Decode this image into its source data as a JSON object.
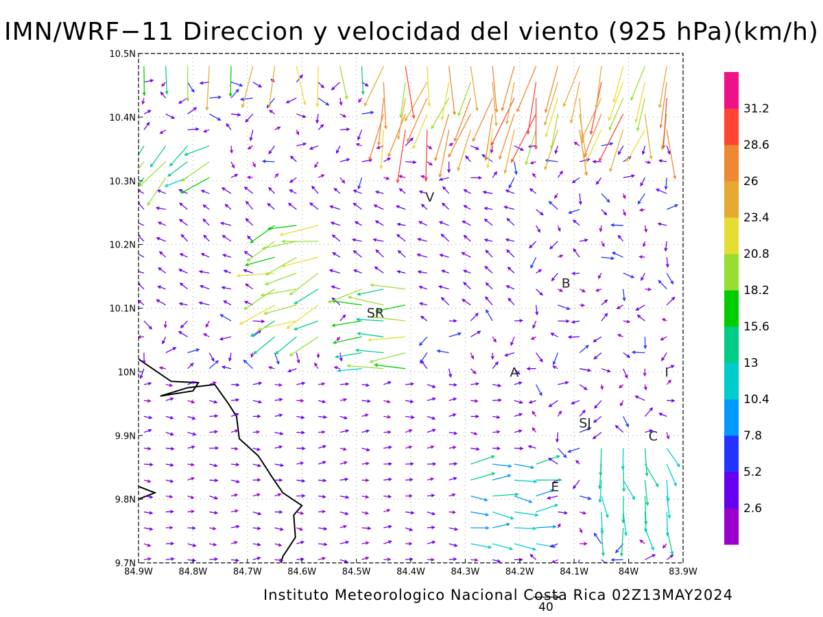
{
  "title": "IMN/WRF−11 Direccion y velocidad del viento (925 hPa)(km/h)",
  "footer": "Instituto Meteorologico Nacional Costa Rica 02Z13MAY2024",
  "reference_vector_label": "40",
  "chart_data": {
    "type": "vector_map",
    "xlim": [
      -84.9,
      -83.9
    ],
    "ylim": [
      9.7,
      10.5
    ],
    "grid": true,
    "x_ticks": [
      {
        "value": -84.9,
        "label": "84.9W"
      },
      {
        "value": -84.8,
        "label": "84.8W"
      },
      {
        "value": -84.7,
        "label": "84.7W"
      },
      {
        "value": -84.6,
        "label": "84.6W"
      },
      {
        "value": -84.5,
        "label": "84.5W"
      },
      {
        "value": -84.4,
        "label": "84.4W"
      },
      {
        "value": -84.3,
        "label": "84.3W"
      },
      {
        "value": -84.2,
        "label": "84.2W"
      },
      {
        "value": -84.1,
        "label": "84.1W"
      },
      {
        "value": -84.0,
        "label": "84W"
      },
      {
        "value": -83.9,
        "label": "83.9W"
      }
    ],
    "y_ticks": [
      {
        "value": 9.7,
        "label": "9.7N"
      },
      {
        "value": 9.8,
        "label": "9.8N"
      },
      {
        "value": 9.9,
        "label": "9.9N"
      },
      {
        "value": 10.0,
        "label": "10N"
      },
      {
        "value": 10.1,
        "label": "10.1N"
      },
      {
        "value": 10.2,
        "label": "10.2N"
      },
      {
        "value": 10.3,
        "label": "10.3N"
      },
      {
        "value": 10.4,
        "label": "10.4N"
      },
      {
        "value": 10.5,
        "label": "10.5N"
      }
    ],
    "colorbar": {
      "labels": [
        "2.6",
        "5.2",
        "7.8",
        "10.4",
        "13",
        "15.6",
        "18.2",
        "20.8",
        "23.4",
        "26",
        "28.6",
        "31.2"
      ],
      "colors": [
        "#9900cc",
        "#6600ee",
        "#2233ff",
        "#0099ff",
        "#00cccc",
        "#00cc88",
        "#00cc00",
        "#99dd33",
        "#e6dd33",
        "#e6aa33",
        "#ee8833",
        "#ff4433",
        "#ee1188"
      ]
    },
    "cities": [
      {
        "label": "V",
        "lon": -84.365,
        "lat": 10.275
      },
      {
        "label": "SR",
        "lon": -84.465,
        "lat": 10.093
      },
      {
        "label": "B",
        "lon": -84.115,
        "lat": 10.14
      },
      {
        "label": "A",
        "lon": -84.21,
        "lat": 10.0
      },
      {
        "label": "I",
        "lon": -83.93,
        "lat": 10.0
      },
      {
        "label": "SJ",
        "lon": -84.08,
        "lat": 9.92
      },
      {
        "label": "C",
        "lon": -83.955,
        "lat": 9.9
      },
      {
        "label": "E",
        "lon": -84.135,
        "lat": 9.82
      }
    ],
    "coastline": [
      [
        [
          -84.9,
          10.02
        ],
        [
          -84.84,
          9.985
        ],
        [
          -84.79,
          9.983
        ],
        [
          -84.8,
          9.97
        ],
        [
          -84.86,
          9.962
        ],
        [
          -84.81,
          9.975
        ],
        [
          -84.76,
          9.98
        ],
        [
          -84.735,
          9.95
        ],
        [
          -84.72,
          9.93
        ],
        [
          -84.715,
          9.895
        ],
        [
          -84.68,
          9.868
        ],
        [
          -84.655,
          9.835
        ],
        [
          -84.635,
          9.81
        ],
        [
          -84.6,
          9.79
        ],
        [
          -84.615,
          9.775
        ],
        [
          -84.612,
          9.74
        ],
        [
          -84.635,
          9.71
        ],
        [
          -84.638,
          9.7
        ]
      ],
      [
        [
          -84.9,
          9.8
        ],
        [
          -84.87,
          9.81
        ],
        [
          -84.9,
          9.82
        ]
      ]
    ],
    "wind_regions": [
      {
        "lon": [
          -84.9,
          -84.45
        ],
        "lat": [
          10.47,
          10.5
        ],
        "direction_deg": 185,
        "speed": 21
      },
      {
        "lon": [
          -84.45,
          -83.9
        ],
        "lat": [
          10.38,
          10.5
        ],
        "direction_deg": 190,
        "speed": 26
      },
      {
        "lon": [
          -84.9,
          -84.75
        ],
        "lat": [
          10.3,
          10.38
        ],
        "direction_deg": 230,
        "speed": 18
      },
      {
        "lon": [
          -84.65,
          -84.55
        ],
        "lat": [
          10.05,
          10.25
        ],
        "direction_deg": 250,
        "speed": 19
      },
      {
        "lon": [
          -84.52,
          -84.38
        ],
        "lat": [
          10.0,
          10.15
        ],
        "direction_deg": 265,
        "speed": 18
      },
      {
        "lon": [
          -84.3,
          -84.15
        ],
        "lat": [
          9.72,
          9.88
        ],
        "direction_deg": 90,
        "speed": 12
      },
      {
        "lon": [
          -84.08,
          -83.9
        ],
        "lat": [
          9.75,
          9.9
        ],
        "direction_deg": 165,
        "speed": 14
      },
      {
        "lon": [
          -84.9,
          -84.2
        ],
        "lat": [
          9.7,
          10.0
        ],
        "direction_deg": 90,
        "speed": 3
      },
      {
        "lon": [
          -84.9,
          -84.2
        ],
        "lat": [
          10.1,
          10.3
        ],
        "direction_deg": 300,
        "speed": 4
      }
    ]
  }
}
